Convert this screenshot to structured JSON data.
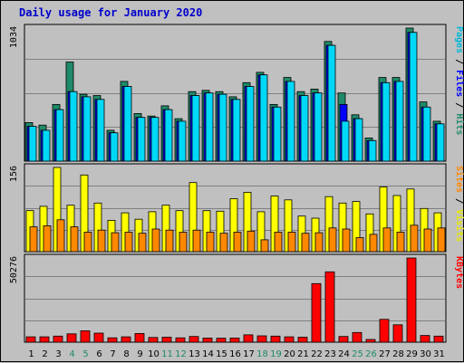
{
  "chart_data": [
    {
      "type": "bar",
      "title": "Daily usage for January 2020",
      "panel": "hits-files-pages",
      "categories": [
        "1",
        "2",
        "3",
        "4",
        "5",
        "6",
        "7",
        "8",
        "9",
        "10",
        "11",
        "12",
        "13",
        "14",
        "15",
        "16",
        "17",
        "18",
        "19",
        "20",
        "21",
        "22",
        "23",
        "24",
        "25",
        "26",
        "27",
        "28",
        "29",
        "30",
        "31"
      ],
      "weekend_categories": [
        "4",
        "5",
        "11",
        "12",
        "18",
        "19",
        "25",
        "26"
      ],
      "ymax_label": "1034",
      "ylim": [
        0,
        1034
      ],
      "right_label_parts": [
        {
          "text": "Pages",
          "color": "#00B8D8"
        },
        {
          "text": " / ",
          "color": "#000000"
        },
        {
          "text": "Files",
          "color": "#0000FF"
        },
        {
          "text": " / ",
          "color": "#000000"
        },
        {
          "text": "Hits",
          "color": "#1F8A6A"
        }
      ],
      "series": [
        {
          "name": "Hits",
          "color": "#1F8A6A",
          "values": [
            300,
            280,
            440,
            770,
            520,
            510,
            240,
            620,
            370,
            350,
            430,
            330,
            540,
            550,
            540,
            500,
            610,
            690,
            440,
            650,
            540,
            560,
            930,
            530,
            360,
            180,
            650,
            650,
            1034,
            460,
            310
          ]
        },
        {
          "name": "Files",
          "color": "#0000FF",
          "values": [
            270,
            240,
            400,
            540,
            500,
            480,
            220,
            580,
            340,
            340,
            400,
            310,
            510,
            530,
            520,
            480,
            580,
            670,
            420,
            620,
            510,
            530,
            900,
            440,
            330,
            160,
            610,
            620,
            1000,
            420,
            290
          ]
        },
        {
          "name": "Pages",
          "color": "#00D8F8",
          "values": [
            270,
            240,
            400,
            540,
            500,
            480,
            220,
            580,
            340,
            340,
            400,
            310,
            510,
            530,
            520,
            480,
            580,
            670,
            420,
            620,
            510,
            530,
            900,
            310,
            330,
            160,
            610,
            620,
            1000,
            420,
            290
          ]
        }
      ]
    },
    {
      "type": "bar",
      "panel": "visits-sites",
      "categories": [
        "1",
        "2",
        "3",
        "4",
        "5",
        "6",
        "7",
        "8",
        "9",
        "10",
        "11",
        "12",
        "13",
        "14",
        "15",
        "16",
        "17",
        "18",
        "19",
        "20",
        "21",
        "22",
        "23",
        "24",
        "25",
        "26",
        "27",
        "28",
        "29",
        "30",
        "31"
      ],
      "ymax_label": "156",
      "ylim": [
        0,
        156
      ],
      "right_label_parts": [
        {
          "text": "Sites",
          "color": "#FF8800"
        },
        {
          "text": " / ",
          "color": "#000000"
        },
        {
          "text": "Visits",
          "color": "#E8E800"
        }
      ],
      "series": [
        {
          "name": "Visits",
          "color": "#FFFF00",
          "values": [
            76,
            84,
            156,
            86,
            142,
            90,
            58,
            72,
            60,
            74,
            86,
            76,
            128,
            76,
            75,
            98,
            110,
            74,
            103,
            96,
            66,
            62,
            102,
            90,
            93,
            70,
            120,
            104,
            116,
            80,
            72
          ]
        },
        {
          "name": "Sites",
          "color": "#FF8800",
          "values": [
            46,
            48,
            59,
            46,
            36,
            40,
            35,
            36,
            34,
            42,
            40,
            36,
            40,
            36,
            34,
            36,
            38,
            22,
            36,
            36,
            34,
            35,
            44,
            42,
            26,
            32,
            44,
            36,
            49,
            42,
            44
          ]
        }
      ]
    },
    {
      "type": "bar",
      "panel": "kbytes",
      "categories": [
        "1",
        "2",
        "3",
        "4",
        "5",
        "6",
        "7",
        "8",
        "9",
        "10",
        "11",
        "12",
        "13",
        "14",
        "15",
        "16",
        "17",
        "18",
        "19",
        "20",
        "21",
        "22",
        "23",
        "24",
        "25",
        "26",
        "27",
        "28",
        "29",
        "30",
        "31"
      ],
      "ymax_label": "50276",
      "ylim": [
        0,
        50276
      ],
      "right_label_parts": [
        {
          "text": "KBytes",
          "color": "#FF0000"
        }
      ],
      "series": [
        {
          "name": "KBytes",
          "color": "#FF0000",
          "values": [
            3200,
            3200,
            3600,
            5000,
            6800,
            5400,
            2600,
            3200,
            5200,
            2800,
            3000,
            2600,
            3400,
            2500,
            2400,
            2500,
            4400,
            3800,
            3600,
            3200,
            3000,
            35000,
            42000,
            3400,
            5800,
            1600,
            13600,
            10400,
            50276,
            4000,
            3600
          ]
        }
      ]
    }
  ]
}
